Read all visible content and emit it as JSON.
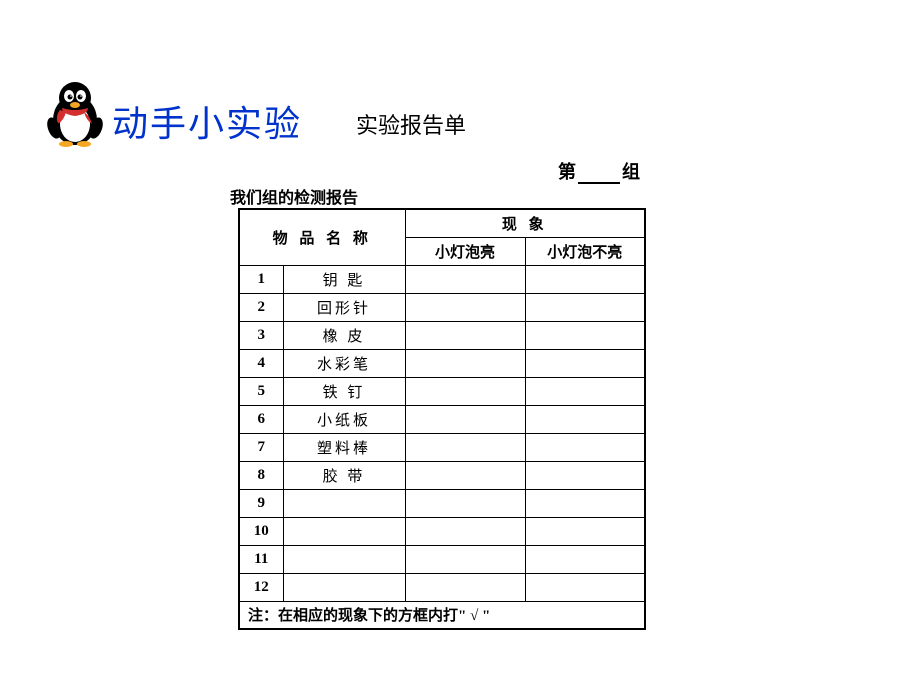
{
  "title_main": "动手小实验",
  "title_sub": "实验报告单",
  "group_prefix": "第",
  "group_suffix": "组",
  "report_label": "我们组的检测报告",
  "table": {
    "head_item": "物 品 名 称",
    "head_phenom": "现  象",
    "head_on": "小灯泡亮",
    "head_off": "小灯泡不亮",
    "rows": [
      {
        "n": "1",
        "name": "钥 匙"
      },
      {
        "n": "2",
        "name": "回形针"
      },
      {
        "n": "3",
        "name": "橡 皮"
      },
      {
        "n": "4",
        "name": "水彩笔"
      },
      {
        "n": "5",
        "name": "铁 钉"
      },
      {
        "n": "6",
        "name": "小纸板"
      },
      {
        "n": "7",
        "name": "塑料棒"
      },
      {
        "n": "8",
        "name": "胶 带"
      },
      {
        "n": "9",
        "name": ""
      },
      {
        "n": "10",
        "name": ""
      },
      {
        "n": "11",
        "name": ""
      },
      {
        "n": "12",
        "name": ""
      }
    ],
    "footer": "注：在相应的现象下的方框内打\" √ \""
  },
  "colors": {
    "title": "#0033cc",
    "border": "#000000",
    "bg": "#ffffff"
  }
}
